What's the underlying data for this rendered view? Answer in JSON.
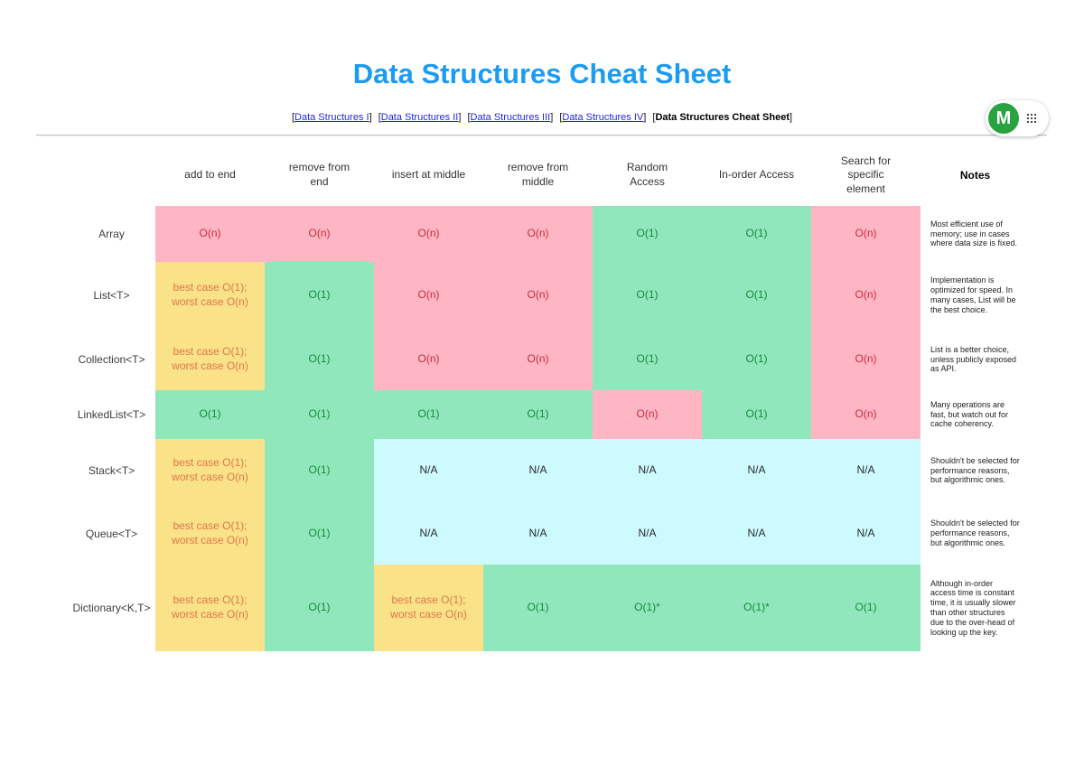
{
  "page": {
    "title": "Data Structures Cheat Sheet"
  },
  "nav": {
    "bracket_open": "[",
    "bracket_close": "]",
    "items": [
      {
        "label": "Data Structures I",
        "link": true
      },
      {
        "label": "Data Structures II",
        "link": true
      },
      {
        "label": "Data Structures III",
        "link": true
      },
      {
        "label": "Data Structures IV",
        "link": true
      },
      {
        "label": "Data Structures Cheat Sheet",
        "link": false
      }
    ]
  },
  "widget": {
    "logo_letter": "M",
    "icon": "grip-dots-icon"
  },
  "colors": {
    "title_blue": "#1c9bf2",
    "link_blue": "#2323e8",
    "logo_green": "#27a33f",
    "pink": "#ffb6c4",
    "mint": "#90e7bc",
    "yellow": "#fae288",
    "cyan": "#cdfaff",
    "red_text": "#c62b3d",
    "green_text": "#178a3d",
    "orange_text": "#e0764e"
  },
  "table": {
    "columns": [
      "add to end",
      "remove from end",
      "insert at middle",
      "remove from middle",
      "Random Access",
      "In-order Access",
      "Search for specific element",
      "Notes"
    ],
    "rows": [
      {
        "name": "Array",
        "cells": [
          {
            "text": "O(n)",
            "bg": "pink",
            "fg": "red"
          },
          {
            "text": "O(n)",
            "bg": "pink",
            "fg": "red"
          },
          {
            "text": "O(n)",
            "bg": "pink",
            "fg": "red"
          },
          {
            "text": "O(n)",
            "bg": "pink",
            "fg": "red"
          },
          {
            "text": "O(1)",
            "bg": "green",
            "fg": "green"
          },
          {
            "text": "O(1)",
            "bg": "green",
            "fg": "green"
          },
          {
            "text": "O(n)",
            "bg": "pink",
            "fg": "red"
          }
        ],
        "note": "Most efficient use of memory; use in cases where data size is fixed."
      },
      {
        "name": "List<T>",
        "cells": [
          {
            "text": "best case O(1); worst case O(n)",
            "bg": "yellow",
            "fg": "orange"
          },
          {
            "text": "O(1)",
            "bg": "green",
            "fg": "green"
          },
          {
            "text": "O(n)",
            "bg": "pink",
            "fg": "red"
          },
          {
            "text": "O(n)",
            "bg": "pink",
            "fg": "red"
          },
          {
            "text": "O(1)",
            "bg": "green",
            "fg": "green"
          },
          {
            "text": "O(1)",
            "bg": "green",
            "fg": "green"
          },
          {
            "text": "O(n)",
            "bg": "pink",
            "fg": "red"
          }
        ],
        "note": "Implementation is optimized for speed. In many cases, List will be the best choice."
      },
      {
        "name": "Collection<T>",
        "cells": [
          {
            "text": "best case O(1); worst case O(n)",
            "bg": "yellow",
            "fg": "orange"
          },
          {
            "text": "O(1)",
            "bg": "green",
            "fg": "green"
          },
          {
            "text": "O(n)",
            "bg": "pink",
            "fg": "red"
          },
          {
            "text": "O(n)",
            "bg": "pink",
            "fg": "red"
          },
          {
            "text": "O(1)",
            "bg": "green",
            "fg": "green"
          },
          {
            "text": "O(1)",
            "bg": "green",
            "fg": "green"
          },
          {
            "text": "O(n)",
            "bg": "pink",
            "fg": "red"
          }
        ],
        "note": "List is a better choice, unless publicly exposed as API."
      },
      {
        "name": "LinkedList<T>",
        "cells": [
          {
            "text": "O(1)",
            "bg": "green",
            "fg": "green"
          },
          {
            "text": "O(1)",
            "bg": "green",
            "fg": "green"
          },
          {
            "text": "O(1)",
            "bg": "green",
            "fg": "green"
          },
          {
            "text": "O(1)",
            "bg": "green",
            "fg": "green"
          },
          {
            "text": "O(n)",
            "bg": "pink",
            "fg": "red"
          },
          {
            "text": "O(1)",
            "bg": "green",
            "fg": "green"
          },
          {
            "text": "O(n)",
            "bg": "pink",
            "fg": "red"
          }
        ],
        "note": "Many operations are fast, but watch out for cache coherency."
      },
      {
        "name": "Stack<T>",
        "cells": [
          {
            "text": "best case O(1); worst case O(n)",
            "bg": "yellow",
            "fg": "orange"
          },
          {
            "text": "O(1)",
            "bg": "green",
            "fg": "green"
          },
          {
            "text": "N/A",
            "bg": "cyan",
            "fg": "black"
          },
          {
            "text": "N/A",
            "bg": "cyan",
            "fg": "black"
          },
          {
            "text": "N/A",
            "bg": "cyan",
            "fg": "black"
          },
          {
            "text": "N/A",
            "bg": "cyan",
            "fg": "black"
          },
          {
            "text": "N/A",
            "bg": "cyan",
            "fg": "black"
          }
        ],
        "note": "Shouldn't be selected for performance reasons, but algorithmic ones."
      },
      {
        "name": "Queue<T>",
        "cells": [
          {
            "text": "best case O(1); worst case O(n)",
            "bg": "yellow",
            "fg": "orange"
          },
          {
            "text": "O(1)",
            "bg": "green",
            "fg": "green"
          },
          {
            "text": "N/A",
            "bg": "cyan",
            "fg": "black"
          },
          {
            "text": "N/A",
            "bg": "cyan",
            "fg": "black"
          },
          {
            "text": "N/A",
            "bg": "cyan",
            "fg": "black"
          },
          {
            "text": "N/A",
            "bg": "cyan",
            "fg": "black"
          },
          {
            "text": "N/A",
            "bg": "cyan",
            "fg": "black"
          }
        ],
        "note": "Shouldn't be selected for performance reasons, but algorithmic ones."
      },
      {
        "name": "Dictionary<K,T>",
        "cells": [
          {
            "text": "best case O(1); worst case O(n)",
            "bg": "yellow",
            "fg": "orange"
          },
          {
            "text": "O(1)",
            "bg": "green",
            "fg": "green"
          },
          {
            "text": "best case O(1); worst case O(n)",
            "bg": "yellow",
            "fg": "orange"
          },
          {
            "text": "O(1)",
            "bg": "green",
            "fg": "green"
          },
          {
            "text": "O(1)*",
            "bg": "green",
            "fg": "green"
          },
          {
            "text": "O(1)*",
            "bg": "green",
            "fg": "green"
          },
          {
            "text": "O(1)",
            "bg": "green",
            "fg": "green"
          }
        ],
        "note": "Although in-order access time is constant time, it is usually slower than other structures due to the over-head of looking up the key."
      }
    ]
  }
}
